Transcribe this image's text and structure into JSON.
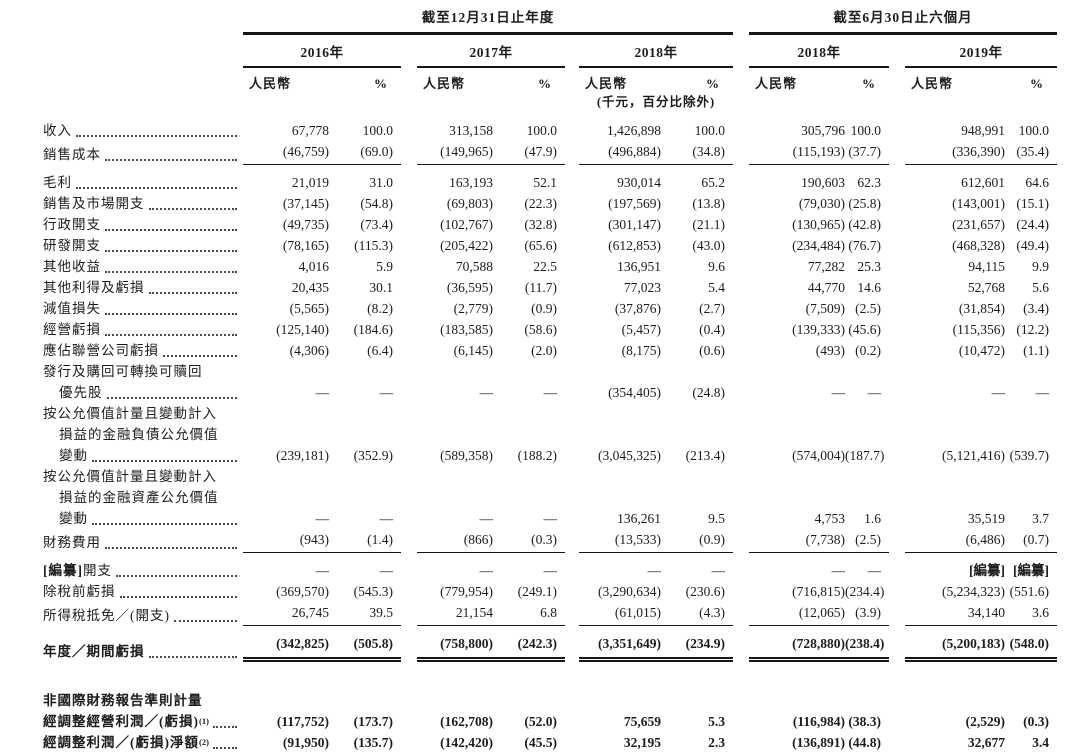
{
  "table": {
    "col_groups": [
      {
        "title": "截至12月31日止年度",
        "years": [
          "2016年",
          "2017年",
          "2018年"
        ]
      },
      {
        "title": "截至6月30日止六個月",
        "years": [
          "2018年",
          "2019年"
        ]
      }
    ],
    "subheaders": {
      "rmb": "人民幣",
      "pct": "%",
      "note": "(千元，百分比除外)"
    },
    "rows": [
      {
        "label": "收入",
        "leader": true,
        "values": [
          "67,778",
          "100.0",
          "313,158",
          "100.0",
          "1,426,898",
          "100.0",
          "305,796",
          "100.0",
          "948,991",
          "100.0"
        ]
      },
      {
        "label": "銷售成本",
        "leader": true,
        "rule": "single",
        "values": [
          "(46,759)",
          "(69.0)",
          "(149,965)",
          "(47.9)",
          "(496,884)",
          "(34.8)",
          "(115,193)",
          "(37.7)",
          "(336,390)",
          "(35.4)"
        ]
      },
      {
        "label": "毛利",
        "leader": true,
        "values": [
          "21,019",
          "31.0",
          "163,193",
          "52.1",
          "930,014",
          "65.2",
          "190,603",
          "62.3",
          "612,601",
          "64.6"
        ]
      },
      {
        "label": "銷售及市場開支",
        "leader": true,
        "values": [
          "(37,145)",
          "(54.8)",
          "(69,803)",
          "(22.3)",
          "(197,569)",
          "(13.8)",
          "(79,030)",
          "(25.8)",
          "(143,001)",
          "(15.1)"
        ]
      },
      {
        "label": "行政開支",
        "leader": true,
        "values": [
          "(49,735)",
          "(73.4)",
          "(102,767)",
          "(32.8)",
          "(301,147)",
          "(21.1)",
          "(130,965)",
          "(42.8)",
          "(231,657)",
          "(24.4)"
        ]
      },
      {
        "label": "研發開支",
        "leader": true,
        "values": [
          "(78,165)",
          "(115.3)",
          "(205,422)",
          "(65.6)",
          "(612,853)",
          "(43.0)",
          "(234,484)",
          "(76.7)",
          "(468,328)",
          "(49.4)"
        ]
      },
      {
        "label": "其他收益",
        "leader": true,
        "values": [
          "4,016",
          "5.9",
          "70,588",
          "22.5",
          "136,951",
          "9.6",
          "77,282",
          "25.3",
          "94,115",
          "9.9"
        ]
      },
      {
        "label": "其他利得及虧損",
        "leader": true,
        "values": [
          "20,435",
          "30.1",
          "(36,595)",
          "(11.7)",
          "77,023",
          "5.4",
          "44,770",
          "14.6",
          "52,768",
          "5.6"
        ]
      },
      {
        "label": "減值損失",
        "leader": true,
        "values": [
          "(5,565)",
          "(8.2)",
          "(2,779)",
          "(0.9)",
          "(37,876)",
          "(2.7)",
          "(7,509)",
          "(2.5)",
          "(31,854)",
          "(3.4)"
        ]
      },
      {
        "label": "經營虧損",
        "leader": true,
        "values": [
          "(125,140)",
          "(184.6)",
          "(183,585)",
          "(58.6)",
          "(5,457)",
          "(0.4)",
          "(139,333)",
          "(45.6)",
          "(115,356)",
          "(12.2)"
        ]
      },
      {
        "label": "應佔聯營公司虧損",
        "leader": true,
        "values": [
          "(4,306)",
          "(6.4)",
          "(6,145)",
          "(2.0)",
          "(8,175)",
          "(0.6)",
          "(493)",
          "(0.2)",
          "(10,472)",
          "(1.1)"
        ]
      },
      {
        "label": "發行及購回可轉換可贖回"
      },
      {
        "label": "優先股",
        "indent": true,
        "leader": true,
        "values": [
          "—",
          "—",
          "—",
          "—",
          "(354,405)",
          "(24.8)",
          "—",
          "—",
          "—",
          "—"
        ]
      },
      {
        "label": "按公允價值計量且變動計入"
      },
      {
        "label": "損益的金融負債公允價值",
        "indent": true
      },
      {
        "label": "變動",
        "indent": true,
        "leader": true,
        "values": [
          "(239,181)",
          "(352.9)",
          "(589,358)",
          "(188.2)",
          "(3,045,325)",
          "(213.4)",
          "(574,004)",
          "(187.7)",
          "(5,121,416)",
          "(539.7)"
        ]
      },
      {
        "label": "按公允價值計量且變動計入"
      },
      {
        "label": "損益的金融資產公允價值",
        "indent": true
      },
      {
        "label": "變動",
        "indent": true,
        "leader": true,
        "values": [
          "—",
          "—",
          "—",
          "—",
          "136,261",
          "9.5",
          "4,753",
          "1.6",
          "35,519",
          "3.7"
        ]
      },
      {
        "label": "財務費用",
        "leader": true,
        "rule": "single",
        "values": [
          "(943)",
          "(1.4)",
          "(866)",
          "(0.3)",
          "(13,533)",
          "(0.9)",
          "(7,738)",
          "(2.5)",
          "(6,486)",
          "(0.7)"
        ]
      },
      {
        "label_bold": "[編纂]",
        "label": "開支",
        "leader": true,
        "values": [
          "—",
          "—",
          "—",
          "—",
          "—",
          "—",
          "—",
          "—",
          "[編纂]",
          "[編纂]"
        ]
      },
      {
        "label": "除稅前虧損",
        "leader": true,
        "values": [
          "(369,570)",
          "(545.3)",
          "(779,954)",
          "(249.1)",
          "(3,290,634)",
          "(230.6)",
          "(716,815)",
          "(234.4)",
          "(5,234,323)",
          "(551.6)"
        ]
      },
      {
        "label": "所得稅抵免／(開支)",
        "leader": true,
        "rule": "single",
        "values": [
          "26,745",
          "39.5",
          "21,154",
          "6.8",
          "(61,015)",
          "(4.3)",
          "(12,065)",
          "(3.9)",
          "34,140",
          "3.6"
        ]
      },
      {
        "label": "年度／期間虧損",
        "bold": true,
        "leader": true,
        "rule": "double",
        "values": [
          "(342,825)",
          "(505.8)",
          "(758,800)",
          "(242.3)",
          "(3,351,649)",
          "(234.9)",
          "(728,880)",
          "(238.4)",
          "(5,200,183)",
          "(548.0)"
        ]
      },
      {
        "label": "非國際財務報告準則計量",
        "bold": true
      },
      {
        "label": "經調整經營利潤／(虧損)",
        "sup": "(1)",
        "bold": true,
        "leader": true,
        "values": [
          "(117,752)",
          "(173.7)",
          "(162,708)",
          "(52.0)",
          "75,659",
          "5.3",
          "(116,984)",
          "(38.3)",
          "(2,529)",
          "(0.3)"
        ]
      },
      {
        "label": "經調整利潤／(虧損)淨額",
        "sup": "(2)",
        "bold": true,
        "leader": true,
        "values": [
          "(91,950)",
          "(135.7)",
          "(142,420)",
          "(45.5)",
          "32,195",
          "2.3",
          "(136,891)",
          "(44.8)",
          "32,677",
          "3.4"
        ]
      }
    ]
  }
}
